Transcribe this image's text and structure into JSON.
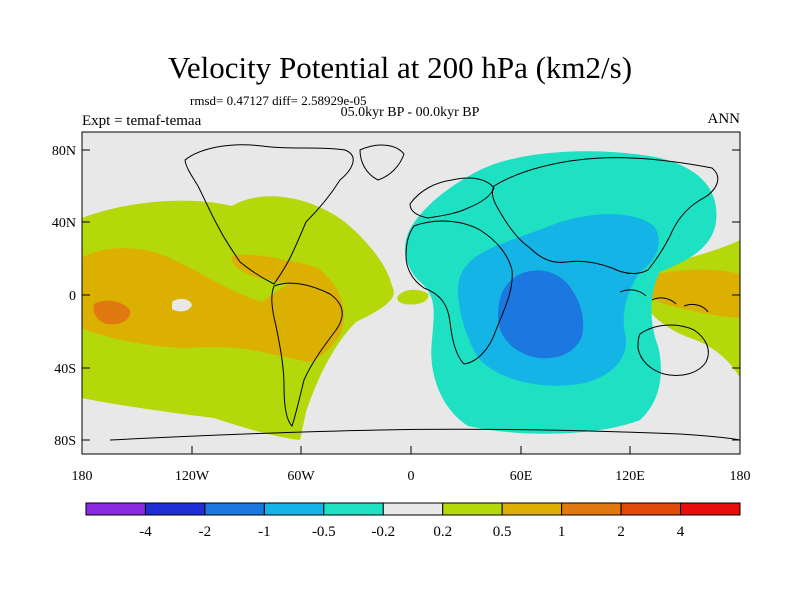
{
  "title": "Velocity Potential at 200 hPa (km2/s)",
  "stats": "rmsd= 0.47127 diff= 2.58929e-05",
  "period": "05.0kyr BP - 00.0kyr BP",
  "experiment": "Expt = temaf-temaa",
  "season": "ANN",
  "map": {
    "lat_ticks": [
      "80N",
      "40N",
      "0",
      "40S",
      "80S"
    ],
    "lon_ticks": [
      "180",
      "120W",
      "60W",
      "0",
      "60E",
      "120E",
      "180"
    ]
  },
  "colorbar": {
    "colors": [
      "#8a2be2",
      "#1f2fd4",
      "#1a78e0",
      "#14b4e6",
      "#1ee1c3",
      "#e8e8e8",
      "#b4d80a",
      "#dcb000",
      "#e07a10",
      "#e04a08",
      "#e80c0c"
    ],
    "labels": [
      "-4",
      "-2",
      "-1",
      "-0.5",
      "-0.2",
      "0.2",
      "0.5",
      "1",
      "2",
      "4"
    ]
  }
}
